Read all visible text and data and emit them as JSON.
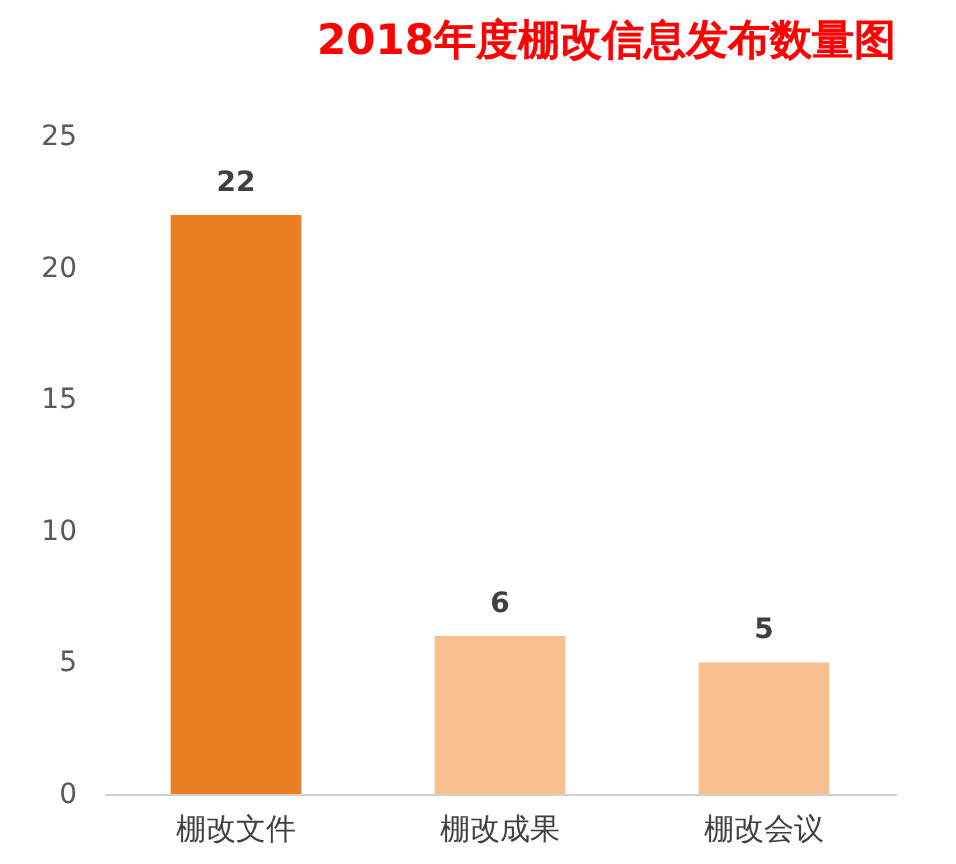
{
  "chart_data": {
    "type": "bar",
    "title": "2018年度棚改信息发布数量图",
    "categories": [
      "棚改文件",
      "棚改成果",
      "棚改会议"
    ],
    "values": [
      22,
      6,
      5
    ],
    "colors": [
      "#e97e23",
      "#f9c08f",
      "#f9c08f"
    ],
    "ylim": [
      0,
      25
    ],
    "yticks": [
      0,
      5,
      10,
      15,
      20,
      25
    ],
    "grid": false,
    "data_labels": true
  }
}
